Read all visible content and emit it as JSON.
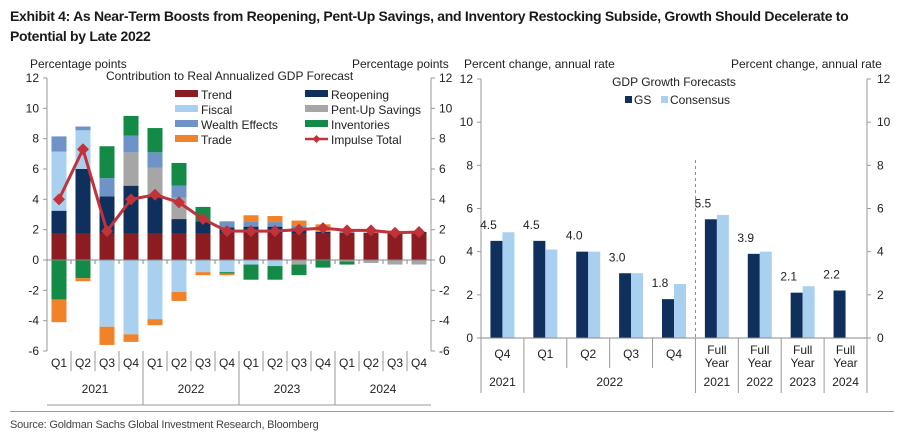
{
  "title": "Exhibit 4: As Near-Term Boosts from Reopening, Pent-Up Savings, and Inventory Restocking Subside, Growth Should Decelerate to Potential by Late 2022",
  "source": "Source: Goldman Sachs Global Investment Research, Bloomberg",
  "colors": {
    "Trend": "#8b1c21",
    "Reopening": "#0f2f5c",
    "Fiscal": "#a9d0ef",
    "Pent-Up Savings": "#a6a6a6",
    "Wealth Effects": "#6e93c6",
    "Inventories": "#138a46",
    "Trade": "#f0822a",
    "Impulse Total": "#c1323a",
    "GS": "#0f2f5c",
    "Consensus": "#a9d0ef"
  },
  "chart_data": [
    {
      "type": "bar",
      "stacked": true,
      "title": "Contribution to Real Annualized GDP Forecast",
      "ylabel_left": "Percentage points",
      "ylabel_right": "Percentage points",
      "ylim": [
        -6,
        12
      ],
      "yticks": [
        -6,
        -4,
        -2,
        0,
        2,
        4,
        6,
        8,
        10,
        12
      ],
      "legend_position": "top-right",
      "categories": [
        "Q1",
        "Q2",
        "Q3",
        "Q4",
        "Q1",
        "Q2",
        "Q3",
        "Q4",
        "Q1",
        "Q2",
        "Q3",
        "Q4",
        "Q1",
        "Q2",
        "Q3",
        "Q4"
      ],
      "year_groups": [
        {
          "label": "2021",
          "span": 4
        },
        {
          "label": "2022",
          "span": 4
        },
        {
          "label": "2023",
          "span": 4
        },
        {
          "label": "2024",
          "span": 4
        }
      ],
      "legend": [
        "Trend",
        "Reopening",
        "Fiscal",
        "Pent-Up Savings",
        "Wealth Effects",
        "Inventories",
        "Trade",
        "Impulse Total"
      ],
      "series": [
        {
          "name": "Trend",
          "values": [
            1.75,
            1.75,
            1.75,
            1.75,
            1.75,
            1.75,
            1.75,
            1.75,
            1.75,
            1.75,
            1.75,
            1.75,
            1.8,
            1.8,
            1.75,
            1.75
          ]
        },
        {
          "name": "Reopening",
          "values": [
            1.5,
            4.25,
            2.45,
            3.15,
            2.55,
            0.95,
            0.8,
            0.4,
            0.45,
            0.45,
            0.35,
            0.1,
            0.0,
            0.0,
            0.1,
            0.1
          ]
        },
        {
          "name": "Fiscal",
          "values": [
            3.9,
            2.55,
            -4.4,
            -4.9,
            -3.9,
            -2.1,
            -0.8,
            -0.8,
            -0.3,
            -0.4,
            0.0,
            0.0,
            0.0,
            0.0,
            0.0,
            0.0
          ]
        },
        {
          "name": "Pent-Up Savings",
          "values": [
            0.0,
            0.0,
            0.0,
            2.2,
            1.8,
            1.4,
            0.0,
            0.0,
            0.0,
            0.0,
            -0.3,
            0.0,
            -0.1,
            -0.2,
            -0.3,
            -0.3
          ]
        },
        {
          "name": "Wealth Effects",
          "values": [
            1.0,
            0.25,
            1.2,
            1.1,
            1.0,
            0.8,
            0.0,
            0.4,
            0.35,
            0.3,
            0.2,
            0.0,
            0.1,
            0.0,
            0.0,
            0.0
          ]
        },
        {
          "name": "Inventories",
          "values": [
            -2.6,
            -1.2,
            2.1,
            1.3,
            1.6,
            1.5,
            0.95,
            -0.1,
            -1.0,
            -0.9,
            -0.7,
            -0.5,
            -0.2,
            0.0,
            0.0,
            0.0
          ]
        },
        {
          "name": "Trade",
          "values": [
            -1.5,
            -0.2,
            -1.2,
            -0.5,
            -0.4,
            -0.6,
            -0.2,
            -0.1,
            0.4,
            0.4,
            0.3,
            0.5,
            0.0,
            0.0,
            0.0,
            0.0
          ]
        }
      ],
      "line": {
        "name": "Impulse Total",
        "values": [
          4.0,
          7.3,
          1.9,
          4.0,
          4.3,
          3.8,
          2.7,
          1.9,
          1.9,
          1.9,
          2.0,
          2.1,
          1.95,
          1.95,
          1.8,
          1.85
        ]
      }
    },
    {
      "type": "bar",
      "title": "GDP Growth Forecasts",
      "ylabel_left": "Percent change, annual rate",
      "ylabel_right": "Percent change, annual rate",
      "ylim": [
        0,
        12
      ],
      "yticks": [
        0,
        2,
        4,
        6,
        8,
        10,
        12
      ],
      "legend_position": "top-center",
      "legend": [
        "GS",
        "Consensus"
      ],
      "categories": [
        "Q4",
        "Q1",
        "Q2",
        "Q3",
        "Q4",
        "Full Year",
        "Full Year",
        "Full Year",
        "Full Year"
      ],
      "category_years": [
        "2021",
        "2022",
        "2022",
        "2022",
        "2022",
        "2021",
        "2022",
        "2023",
        "2024"
      ],
      "year_groups": [
        {
          "label": "2021",
          "span": 1
        },
        {
          "label": "2022",
          "span": 4
        },
        {
          "label": "2021",
          "span": 1
        },
        {
          "label": "2022",
          "span": 1
        },
        {
          "label": "2023",
          "span": 1
        },
        {
          "label": "2024",
          "span": 1
        }
      ],
      "divider_after_index": 4,
      "series": [
        {
          "name": "GS",
          "values": [
            4.5,
            4.5,
            4.0,
            3.0,
            1.8,
            5.5,
            3.9,
            2.1,
            2.2
          ]
        },
        {
          "name": "Consensus",
          "values": [
            4.9,
            4.1,
            4.0,
            3.0,
            2.5,
            5.7,
            4.0,
            2.4,
            null
          ]
        }
      ],
      "data_labels": [
        "4.5",
        "4.5",
        "4.0",
        "3.0",
        "1.8",
        "5.5",
        "3.9",
        "2.1",
        "2.2"
      ]
    }
  ]
}
